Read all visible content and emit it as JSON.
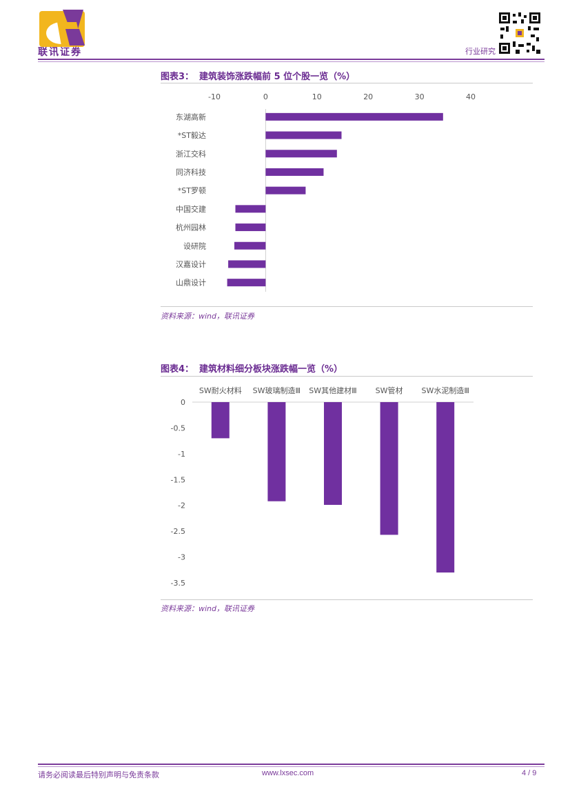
{
  "header": {
    "company_name": "联讯证券",
    "section": "行业研究"
  },
  "figure3": {
    "label": "图表3：",
    "title": "建筑装饰涨跌幅前 5 位个股一览（%）",
    "source": "资料来源：wind，联讯证券"
  },
  "figure4": {
    "label": "图表4：",
    "title": "建筑材料细分板块涨跌幅一览（%）",
    "source": "资料来源：wind，联讯证券"
  },
  "chart_data": [
    {
      "type": "bar",
      "orientation": "horizontal",
      "categories": [
        "东湖高新",
        "*ST毅达",
        "浙江交科",
        "同济科技",
        "*ST罗顿",
        "中国交建",
        "杭州园林",
        "设研院",
        "汉嘉设计",
        "山鼎设计"
      ],
      "values": [
        34.6,
        14.8,
        13.9,
        11.3,
        7.8,
        -5.9,
        -5.9,
        -6.1,
        -7.3,
        -7.5
      ],
      "xlim": [
        -10,
        40
      ],
      "xticks": [
        -10,
        0,
        10,
        20,
        30,
        40
      ],
      "color": "#7030a0"
    },
    {
      "type": "bar",
      "categories": [
        "SW耐火材料",
        "SW玻璃制造Ⅲ",
        "SW其他建材Ⅲ",
        "SW管材",
        "SW水泥制造Ⅲ"
      ],
      "values": [
        -0.7,
        -1.92,
        -1.99,
        -2.57,
        -3.3
      ],
      "ylim": [
        -3.5,
        0
      ],
      "yticks": [
        0,
        -0.5,
        -1,
        -1.5,
        -2,
        -2.5,
        -3,
        -3.5
      ],
      "color": "#7030a0"
    }
  ],
  "footer": {
    "disclaimer": "请务必阅读最后特别声明与免责条款",
    "website": "www.lxsec.com",
    "page": "4 / 9"
  }
}
